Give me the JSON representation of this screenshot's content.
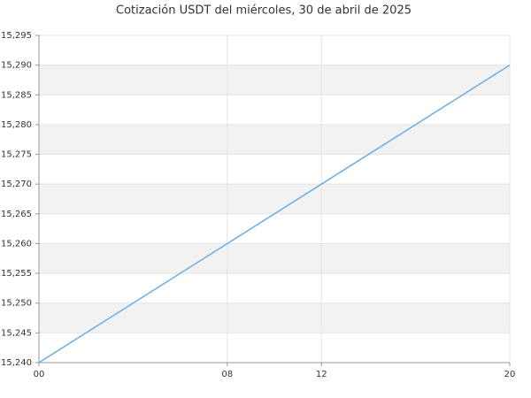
{
  "chart_data": {
    "type": "line",
    "title": "Cotización USDT del miércoles, 30 de abril de 2025",
    "x": [
      0,
      8,
      12,
      20
    ],
    "series": [
      {
        "name": "USDT",
        "color": "#6aaee8",
        "values": [
          15.24,
          15.26,
          15.27,
          15.29
        ]
      }
    ],
    "xlim": [
      0,
      20
    ],
    "xticks": [
      {
        "value": 0,
        "label": "00"
      },
      {
        "value": 8,
        "label": "08"
      },
      {
        "value": 12,
        "label": "12"
      },
      {
        "value": 20,
        "label": "20"
      }
    ],
    "ylim": [
      15.24,
      15.295
    ],
    "yticks": [
      {
        "value": 15.24,
        "label": "15,240"
      },
      {
        "value": 15.245,
        "label": "15,245"
      },
      {
        "value": 15.25,
        "label": "15,250"
      },
      {
        "value": 15.255,
        "label": "15,255"
      },
      {
        "value": 15.26,
        "label": "15,260"
      },
      {
        "value": 15.265,
        "label": "15,265"
      },
      {
        "value": 15.27,
        "label": "15,270"
      },
      {
        "value": 15.275,
        "label": "15,275"
      },
      {
        "value": 15.28,
        "label": "15,280"
      },
      {
        "value": 15.285,
        "label": "15,285"
      },
      {
        "value": 15.29,
        "label": "15,290"
      },
      {
        "value": 15.295,
        "label": "15,295"
      }
    ],
    "grid": true
  }
}
